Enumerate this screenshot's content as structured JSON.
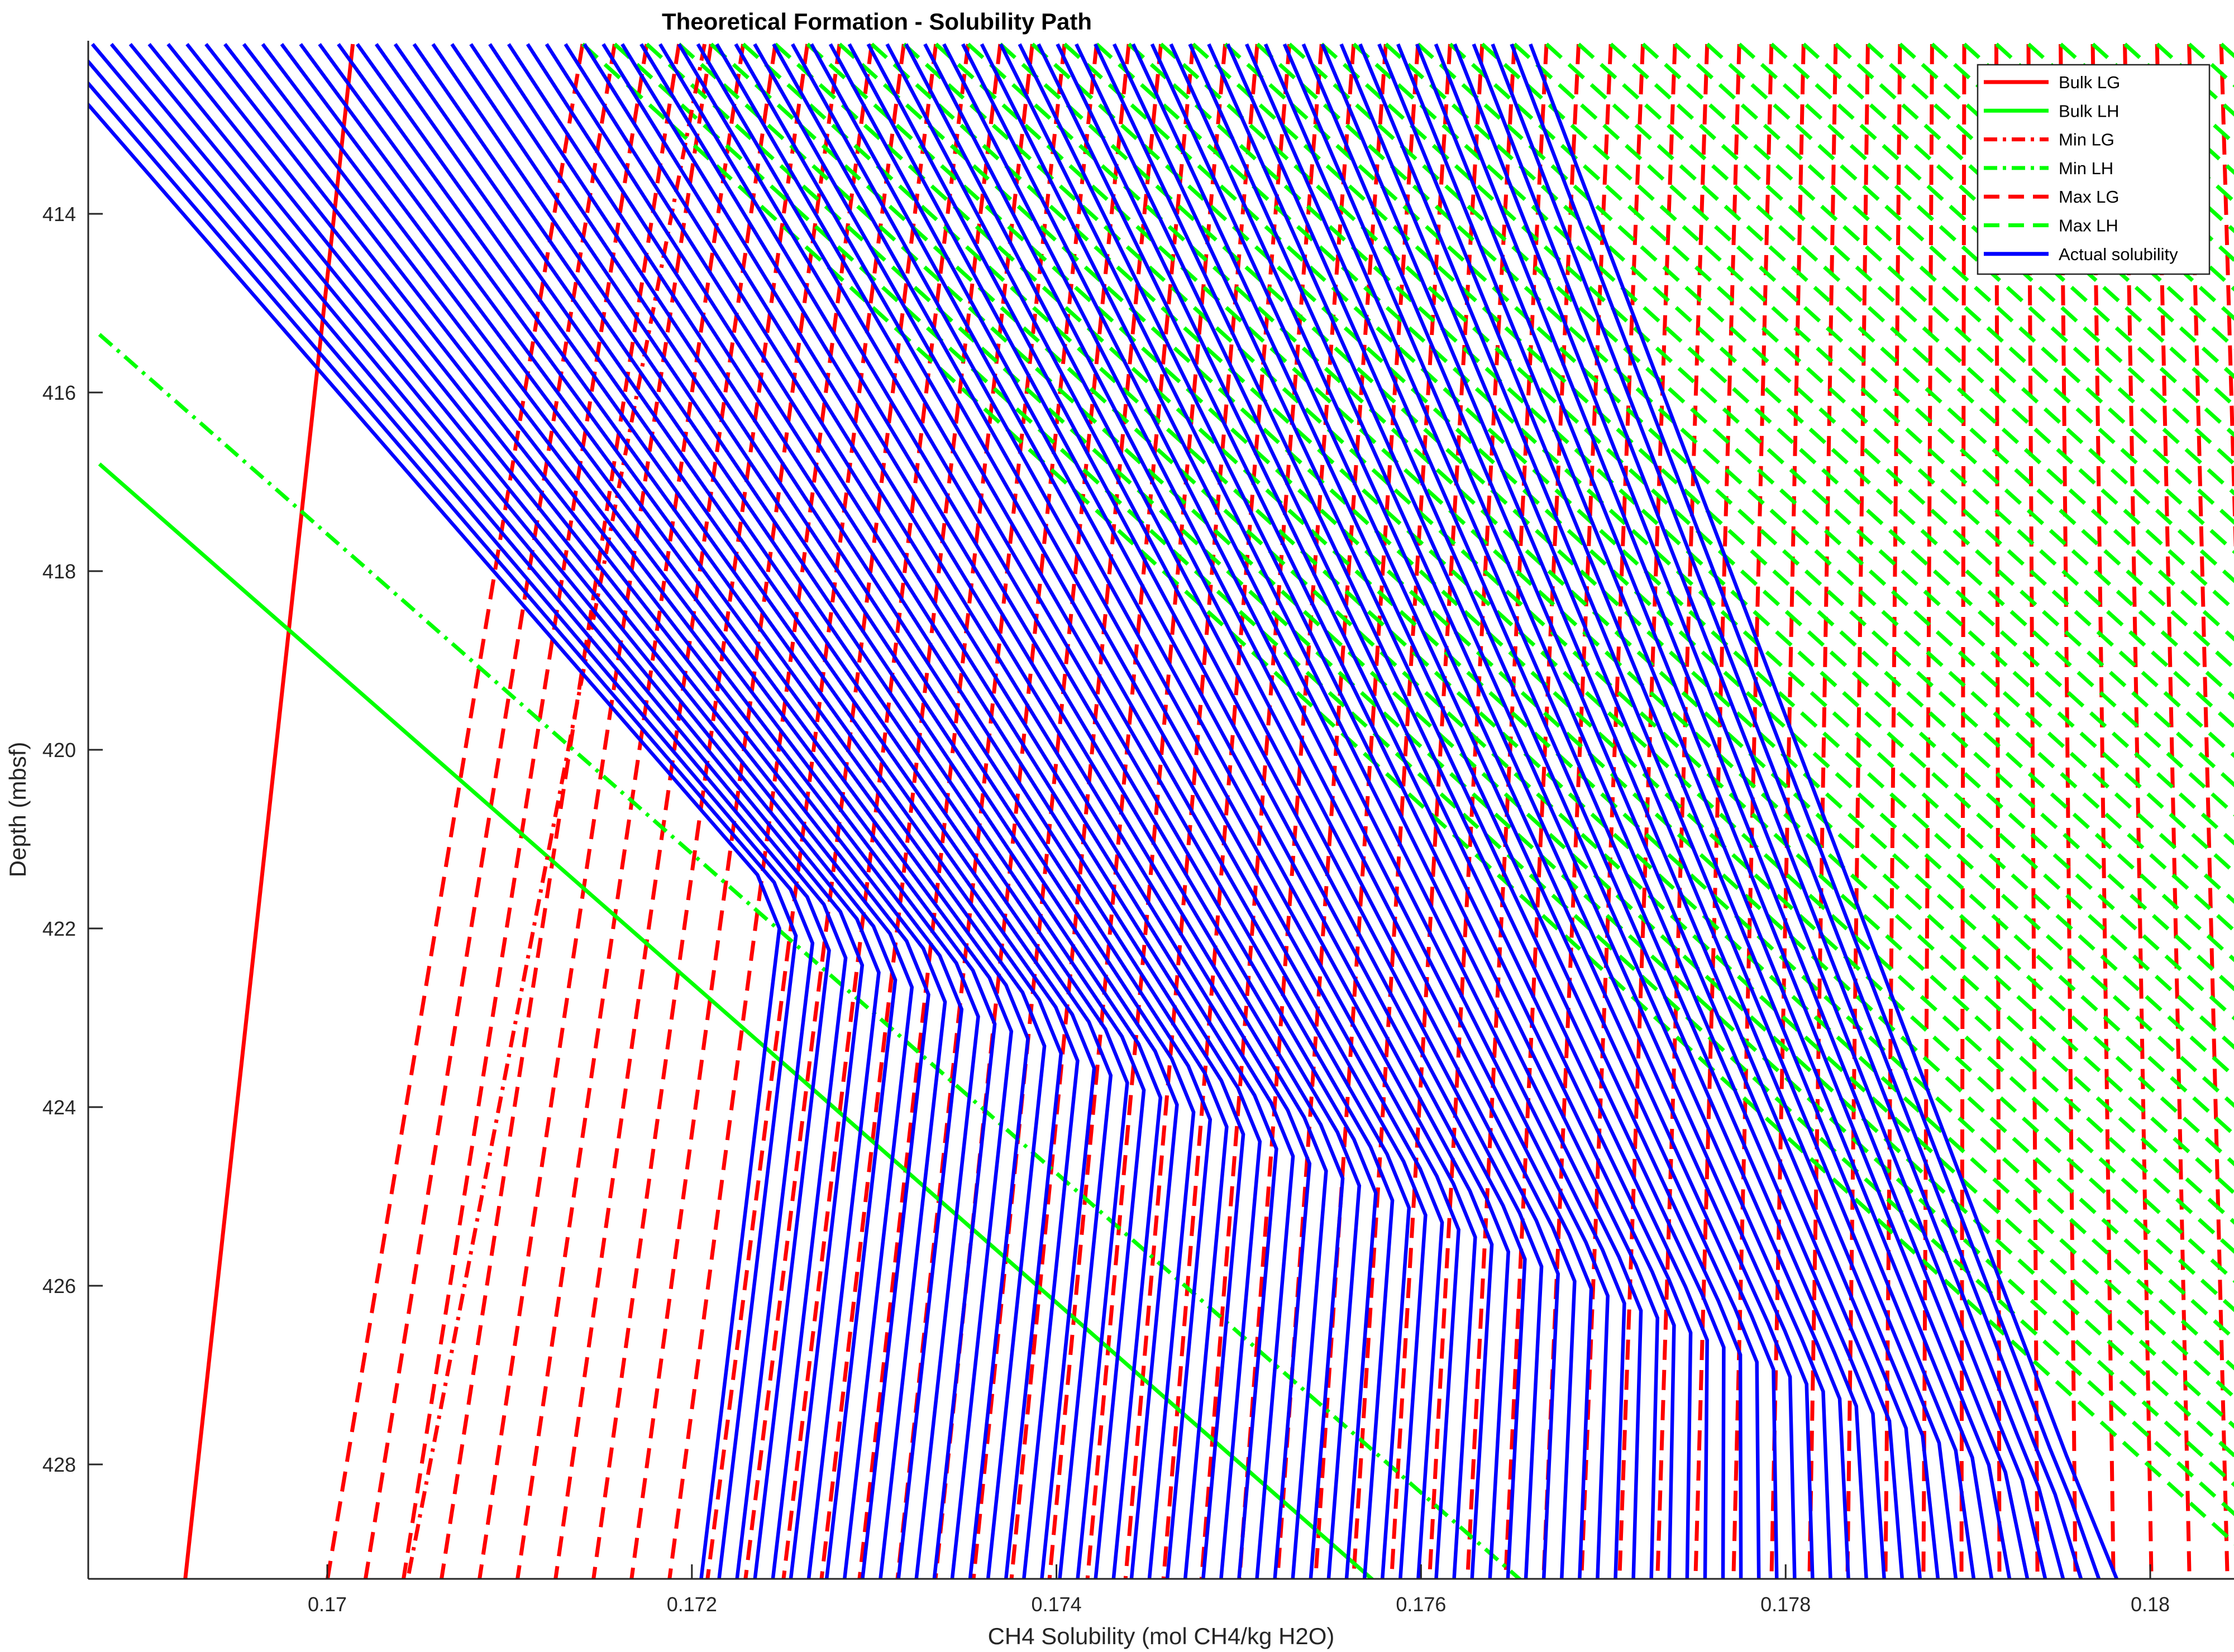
{
  "chart_data": {
    "type": "line",
    "title": "Theoretical Formation - Solubility Path",
    "xlabel": "CH4 Solubility (mol CH4/kg H2O)",
    "ylabel": "Depth (mbsf)",
    "xlim": [
      0.16875,
      0.18
    ],
    "ylim": [
      429.3,
      412.1
    ],
    "y_reversed": true,
    "xticks": [
      0.17,
      0.172,
      0.174,
      0.176,
      0.178,
      0.18
    ],
    "xtick_labels": [
      "0.17",
      "0.172",
      "0.174",
      "0.176",
      "0.178",
      "0.18"
    ],
    "yticks": [
      414,
      416,
      418,
      420,
      422,
      424,
      426,
      428
    ],
    "ytick_labels": [
      "414",
      "416",
      "418",
      "420",
      "422",
      "424",
      "426",
      "428"
    ],
    "grid": false,
    "legend_position": "top-right",
    "legend": [
      {
        "label": "Bulk LG",
        "color": "#ff0000",
        "style": "solid"
      },
      {
        "label": "Bulk LH",
        "color": "#00ff00",
        "style": "solid"
      },
      {
        "label": "Min LG",
        "color": "#ff0000",
        "style": "dashdot"
      },
      {
        "label": "Min LH",
        "color": "#00ff00",
        "style": "dashdot"
      },
      {
        "label": "Max LG",
        "color": "#ff0000",
        "style": "dashed"
      },
      {
        "label": "Max LH",
        "color": "#00ff00",
        "style": "dashed"
      },
      {
        "label": "Actual solubility",
        "color": "#0000ff",
        "style": "solid"
      }
    ],
    "series": [
      {
        "name": "Bulk LG",
        "style": "solid",
        "color": "#ff0000",
        "points": [
          [
            0.17014,
            412.1
          ],
          [
            0.16922,
            429.3
          ]
        ]
      },
      {
        "name": "Bulk LH",
        "style": "solid",
        "color": "#00ff00",
        "points": [
          [
            0.16875,
            416.8
          ],
          [
            0.17574,
            429.3
          ]
        ]
      },
      {
        "name": "Min LG",
        "style": "dashdot",
        "color": "#ff0000",
        "points": [
          [
            0.17207,
            412.1
          ],
          [
            0.17044,
            429.3
          ]
        ]
      },
      {
        "name": "Min LH",
        "style": "dashdot",
        "color": "#00ff00",
        "points": [
          [
            0.16875,
            415.35
          ],
          [
            0.17655,
            429.3
          ]
        ]
      }
    ],
    "family_series": [
      {
        "name": "Max LG",
        "style": "dashed",
        "color": "#ff0000",
        "count": 60,
        "top_x_range": [
          0.1714,
          0.1818
        ],
        "bottom_x_range": [
          0.17,
          0.1823
        ],
        "top_y": 412.1,
        "bottom_y": 429.3
      },
      {
        "name": "Max LH",
        "style": "dashed",
        "color": "#00ff00",
        "count": 60,
        "top_x_range": [
          0.1714,
          0.1818
        ],
        "depth_slope_per_m": 0.00054
      },
      {
        "name": "Actual solubility",
        "style": "solid",
        "color": "#0000ff",
        "count": 80,
        "top_x_range": [
          0.1684,
          0.1766
        ],
        "bottom_x_range": [
          0.17205,
          0.17982
        ],
        "knee_depth_range": [
          422.0,
          428.5
        ],
        "knee_x_range": [
          0.17248,
          0.17966
        ]
      }
    ]
  }
}
